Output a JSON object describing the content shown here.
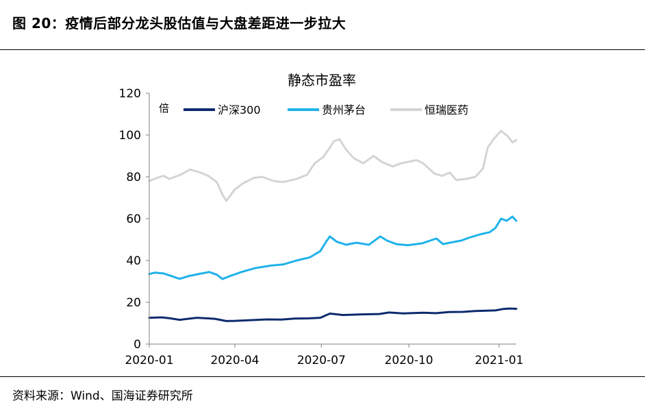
{
  "figure": {
    "title": "图 20：疫情后部分龙头股估值与大盘差距进一步拉大",
    "source": "资料来源：Wind、国海证券研究所"
  },
  "colors": {
    "hs300": "#0d2a6e",
    "moutai": "#1fb2ea",
    "hengrui": "#d4d4d4",
    "axis": "#808080"
  },
  "chart_data": {
    "type": "line",
    "title": "静态市盈率",
    "unit": "倍",
    "ylim": [
      0,
      120
    ],
    "yticks": [
      0,
      20,
      40,
      60,
      80,
      100,
      120
    ],
    "xlim": [
      "2020-01-02",
      "2021-01-22"
    ],
    "xticks": [
      {
        "date": "2020-01-02",
        "label": "2020-01"
      },
      {
        "date": "2020-04-01",
        "label": "2020-04"
      },
      {
        "date": "2020-07-01",
        "label": "2020-07"
      },
      {
        "date": "2020-10-01",
        "label": "2020-10"
      },
      {
        "date": "2021-01-04",
        "label": "2021-01"
      }
    ],
    "legend_position": "top",
    "series": [
      {
        "name": "沪深300",
        "color": "#0d2a6e",
        "points": [
          [
            "2020-01-02",
            12.6
          ],
          [
            "2020-01-15",
            12.8
          ],
          [
            "2020-01-23",
            12.4
          ],
          [
            "2020-02-03",
            11.6
          ],
          [
            "2020-02-14",
            12.2
          ],
          [
            "2020-02-21",
            12.6
          ],
          [
            "2020-03-04",
            12.3
          ],
          [
            "2020-03-11",
            12.1
          ],
          [
            "2020-03-23",
            11.0
          ],
          [
            "2020-04-01",
            11.1
          ],
          [
            "2020-04-15",
            11.4
          ],
          [
            "2020-05-06",
            11.8
          ],
          [
            "2020-05-20",
            11.7
          ],
          [
            "2020-06-03",
            12.2
          ],
          [
            "2020-06-17",
            12.3
          ],
          [
            "2020-06-30",
            12.6
          ],
          [
            "2020-07-06",
            13.8
          ],
          [
            "2020-07-10",
            14.6
          ],
          [
            "2020-07-24",
            13.9
          ],
          [
            "2020-08-10",
            14.2
          ],
          [
            "2020-08-31",
            14.4
          ],
          [
            "2020-09-10",
            15.1
          ],
          [
            "2020-09-25",
            14.7
          ],
          [
            "2020-10-16",
            15.0
          ],
          [
            "2020-10-30",
            14.8
          ],
          [
            "2020-11-12",
            15.3
          ],
          [
            "2020-11-27",
            15.4
          ],
          [
            "2020-12-10",
            15.8
          ],
          [
            "2020-12-31",
            16.1
          ],
          [
            "2021-01-08",
            16.8
          ],
          [
            "2021-01-15",
            17.0
          ],
          [
            "2021-01-22",
            16.9
          ]
        ]
      },
      {
        "name": "贵州茅台",
        "color": "#1fb2ea",
        "points": [
          [
            "2020-01-02",
            33.5
          ],
          [
            "2020-01-08",
            34.2
          ],
          [
            "2020-01-17",
            33.8
          ],
          [
            "2020-01-23",
            32.9
          ],
          [
            "2020-02-03",
            31.2
          ],
          [
            "2020-02-12",
            32.5
          ],
          [
            "2020-02-24",
            33.6
          ],
          [
            "2020-03-05",
            34.5
          ],
          [
            "2020-03-13",
            33.2
          ],
          [
            "2020-03-19",
            31.1
          ],
          [
            "2020-03-26",
            32.4
          ],
          [
            "2020-04-08",
            34.5
          ],
          [
            "2020-04-22",
            36.3
          ],
          [
            "2020-05-08",
            37.5
          ],
          [
            "2020-05-22",
            38.1
          ],
          [
            "2020-06-05",
            40.0
          ],
          [
            "2020-06-19",
            41.5
          ],
          [
            "2020-06-30",
            44.5
          ],
          [
            "2020-07-06",
            49.0
          ],
          [
            "2020-07-10",
            51.5
          ],
          [
            "2020-07-17",
            49.0
          ],
          [
            "2020-07-27",
            47.5
          ],
          [
            "2020-08-07",
            48.5
          ],
          [
            "2020-08-20",
            47.5
          ],
          [
            "2020-09-01",
            51.5
          ],
          [
            "2020-09-08",
            49.5
          ],
          [
            "2020-09-18",
            47.8
          ],
          [
            "2020-09-30",
            47.3
          ],
          [
            "2020-10-15",
            48.2
          ],
          [
            "2020-10-30",
            50.5
          ],
          [
            "2020-11-06",
            47.8
          ],
          [
            "2020-11-13",
            48.5
          ],
          [
            "2020-11-25",
            49.5
          ],
          [
            "2020-12-04",
            51.0
          ],
          [
            "2020-12-15",
            52.5
          ],
          [
            "2020-12-25",
            53.5
          ],
          [
            "2020-12-31",
            55.5
          ],
          [
            "2021-01-06",
            60.0
          ],
          [
            "2021-01-12",
            59.0
          ],
          [
            "2021-01-18",
            61.0
          ],
          [
            "2021-01-22",
            59.0
          ]
        ]
      },
      {
        "name": "恒瑞医药",
        "color": "#d4d4d4",
        "points": [
          [
            "2020-01-02",
            78.0
          ],
          [
            "2020-01-10",
            79.5
          ],
          [
            "2020-01-17",
            80.5
          ],
          [
            "2020-01-23",
            79.0
          ],
          [
            "2020-02-04",
            81.0
          ],
          [
            "2020-02-14",
            83.5
          ],
          [
            "2020-02-25",
            82.0
          ],
          [
            "2020-03-04",
            80.5
          ],
          [
            "2020-03-13",
            77.5
          ],
          [
            "2020-03-19",
            71.5
          ],
          [
            "2020-03-23",
            68.5
          ],
          [
            "2020-04-01",
            74.0
          ],
          [
            "2020-04-10",
            77.0
          ],
          [
            "2020-04-21",
            79.5
          ],
          [
            "2020-04-30",
            80.0
          ],
          [
            "2020-05-12",
            78.0
          ],
          [
            "2020-05-22",
            77.5
          ],
          [
            "2020-06-05",
            79.0
          ],
          [
            "2020-06-16",
            81.0
          ],
          [
            "2020-06-24",
            86.5
          ],
          [
            "2020-07-03",
            89.5
          ],
          [
            "2020-07-10",
            94.0
          ],
          [
            "2020-07-14",
            97.0
          ],
          [
            "2020-07-20",
            98.0
          ],
          [
            "2020-07-27",
            93.0
          ],
          [
            "2020-08-04",
            89.0
          ],
          [
            "2020-08-14",
            86.5
          ],
          [
            "2020-08-25",
            90.0
          ],
          [
            "2020-09-03",
            87.0
          ],
          [
            "2020-09-14",
            85.0
          ],
          [
            "2020-09-23",
            86.5
          ],
          [
            "2020-10-09",
            88.0
          ],
          [
            "2020-10-16",
            86.5
          ],
          [
            "2020-10-28",
            81.5
          ],
          [
            "2020-11-05",
            80.5
          ],
          [
            "2020-11-13",
            82.0
          ],
          [
            "2020-11-20",
            78.5
          ],
          [
            "2020-11-30",
            79.0
          ],
          [
            "2020-12-10",
            80.0
          ],
          [
            "2020-12-18",
            84.0
          ],
          [
            "2020-12-23",
            94.0
          ],
          [
            "2020-12-30",
            98.5
          ],
          [
            "2021-01-06",
            102.0
          ],
          [
            "2021-01-13",
            99.5
          ],
          [
            "2021-01-18",
            96.5
          ],
          [
            "2021-01-22",
            97.5
          ]
        ]
      }
    ]
  }
}
